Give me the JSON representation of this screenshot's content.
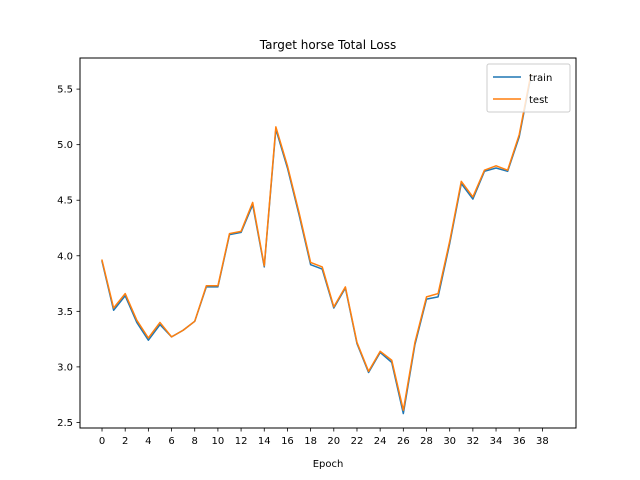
{
  "chart_data": {
    "type": "line",
    "title": "Target horse Total Loss",
    "xlabel": "Epoch",
    "ylabel": "",
    "xlim": [
      -1.9,
      40.9
    ],
    "ylim": [
      2.45,
      5.78
    ],
    "xticks": [
      0,
      2,
      4,
      6,
      8,
      10,
      12,
      14,
      16,
      18,
      20,
      22,
      24,
      26,
      28,
      30,
      32,
      34,
      36,
      38
    ],
    "yticks": [
      2.5,
      3.0,
      3.5,
      4.0,
      4.5,
      5.0,
      5.5
    ],
    "grid": false,
    "legend_position": "top-right",
    "x": [
      0,
      1,
      2,
      3,
      4,
      5,
      6,
      7,
      8,
      9,
      10,
      11,
      12,
      13,
      14,
      15,
      16,
      17,
      18,
      19,
      20,
      21,
      22,
      23,
      24,
      25,
      26,
      27,
      28,
      29,
      30,
      31,
      32,
      33,
      34,
      35,
      36,
      37
    ],
    "series": [
      {
        "name": "train",
        "color": "#1f77b4",
        "values": [
          3.95,
          3.51,
          3.64,
          3.4,
          3.24,
          3.38,
          3.27,
          3.33,
          3.41,
          3.72,
          3.72,
          4.19,
          4.21,
          4.46,
          3.9,
          5.14,
          4.79,
          4.37,
          3.92,
          3.88,
          3.53,
          3.71,
          3.21,
          2.95,
          3.13,
          3.04,
          2.58,
          3.2,
          3.61,
          3.63,
          4.11,
          4.65,
          4.51,
          4.76,
          4.79,
          4.76,
          5.07,
          5.61
        ]
      },
      {
        "name": "test",
        "color": "#ff7f0e",
        "values": [
          3.96,
          3.53,
          3.66,
          3.42,
          3.26,
          3.4,
          3.27,
          3.33,
          3.41,
          3.73,
          3.73,
          4.2,
          4.22,
          4.48,
          3.91,
          5.16,
          4.81,
          4.39,
          3.94,
          3.9,
          3.54,
          3.72,
          3.22,
          2.96,
          3.14,
          3.06,
          2.61,
          3.22,
          3.63,
          3.66,
          4.13,
          4.67,
          4.53,
          4.77,
          4.81,
          4.77,
          5.09,
          5.63
        ]
      }
    ]
  }
}
